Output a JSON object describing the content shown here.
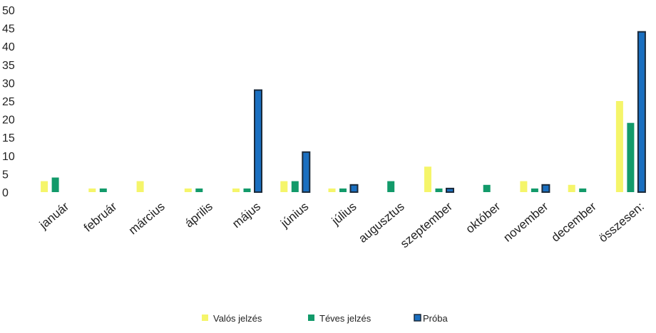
{
  "chart_data": {
    "type": "bar",
    "title": "",
    "xlabel": "",
    "ylabel": "",
    "ylim": [
      0,
      50
    ],
    "yticks": [
      0,
      5,
      10,
      15,
      20,
      25,
      30,
      35,
      40,
      45,
      50
    ],
    "grid": false,
    "legend_position": "bottom",
    "categories": [
      "január",
      "február",
      "március",
      "április",
      "május",
      "június",
      "július",
      "augusztus",
      "szeptember",
      "október",
      "november",
      "december",
      "összesen:"
    ],
    "series": [
      {
        "name": "Valós jelzés",
        "color": "#f5f56a",
        "values": [
          3,
          1,
          3,
          1,
          1,
          3,
          1,
          0,
          7,
          0,
          3,
          2,
          25
        ]
      },
      {
        "name": "Téves jelzés",
        "color": "#129a6a",
        "values": [
          4,
          1,
          0,
          1,
          1,
          3,
          1,
          3,
          1,
          2,
          1,
          1,
          19
        ]
      },
      {
        "name": "Próba",
        "color": "#1a6fc0",
        "values": [
          0,
          0,
          0,
          0,
          28,
          11,
          2,
          0,
          1,
          0,
          2,
          0,
          44
        ]
      }
    ]
  }
}
